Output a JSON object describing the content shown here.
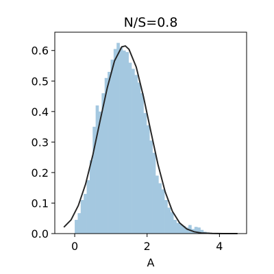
{
  "chart_data": {
    "type": "bar",
    "title": "N/S=0.8",
    "xlabel": "A",
    "ylabel": "",
    "xlim": [
      -0.55,
      4.75
    ],
    "ylim": [
      0.0,
      0.66
    ],
    "grid": false,
    "x_ticks": [
      0,
      2,
      4
    ],
    "x_tick_labels": [
      "0",
      "2",
      "4"
    ],
    "y_ticks": [
      0.0,
      0.1,
      0.2,
      0.3,
      0.4,
      0.5,
      0.6
    ],
    "y_tick_labels": [
      "0.0",
      "0.1",
      "0.2",
      "0.3",
      "0.4",
      "0.5",
      "0.6"
    ],
    "histogram": {
      "color": "#a4c8e0",
      "bin_width": 0.0827,
      "bins": [
        [
          0.0,
          0.045
        ],
        [
          0.0827,
          0.067
        ],
        [
          0.1654,
          0.11
        ],
        [
          0.2481,
          0.13
        ],
        [
          0.3308,
          0.175
        ],
        [
          0.4135,
          0.24
        ],
        [
          0.4962,
          0.35
        ],
        [
          0.5789,
          0.42
        ],
        [
          0.6616,
          0.4
        ],
        [
          0.7443,
          0.46
        ],
        [
          0.827,
          0.51
        ],
        [
          0.9097,
          0.53
        ],
        [
          0.9924,
          0.57
        ],
        [
          1.0751,
          0.605
        ],
        [
          1.1578,
          0.625
        ],
        [
          1.2405,
          0.61
        ],
        [
          1.3232,
          0.6
        ],
        [
          1.4059,
          0.595
        ],
        [
          1.4886,
          0.56
        ],
        [
          1.5713,
          0.54
        ],
        [
          1.654,
          0.52
        ],
        [
          1.7367,
          0.495
        ],
        [
          1.8194,
          0.46
        ],
        [
          1.9021,
          0.395
        ],
        [
          1.9848,
          0.355
        ],
        [
          2.0675,
          0.305
        ],
        [
          2.1502,
          0.265
        ],
        [
          2.2329,
          0.19
        ],
        [
          2.3156,
          0.165
        ],
        [
          2.3983,
          0.145
        ],
        [
          2.481,
          0.11
        ],
        [
          2.5637,
          0.085
        ],
        [
          2.6464,
          0.07
        ],
        [
          2.7291,
          0.045
        ],
        [
          2.8118,
          0.035
        ],
        [
          2.8945,
          0.03
        ],
        [
          2.9772,
          0.025
        ],
        [
          3.0599,
          0.02
        ],
        [
          3.1426,
          0.028
        ],
        [
          3.2253,
          0.015
        ],
        [
          3.308,
          0.022
        ],
        [
          3.3907,
          0.02
        ],
        [
          3.4734,
          0.012
        ],
        [
          3.5561,
          0.006
        ],
        [
          3.6388,
          0.004
        ]
      ]
    },
    "curve": {
      "color": "#262626",
      "x": [
        -0.3,
        -0.1,
        0.1,
        0.3,
        0.5,
        0.7,
        0.9,
        1.1,
        1.3,
        1.4,
        1.5,
        1.7,
        1.9,
        2.1,
        2.3,
        2.5,
        2.7,
        2.9,
        3.1,
        3.3,
        3.5,
        3.8,
        4.1,
        4.5
      ],
      "y": [
        0.021,
        0.045,
        0.092,
        0.162,
        0.257,
        0.369,
        0.478,
        0.566,
        0.612,
        0.615,
        0.604,
        0.546,
        0.449,
        0.337,
        0.227,
        0.137,
        0.073,
        0.035,
        0.015,
        0.006,
        0.002,
        0.0005,
        0.0001,
        0.0
      ]
    }
  }
}
